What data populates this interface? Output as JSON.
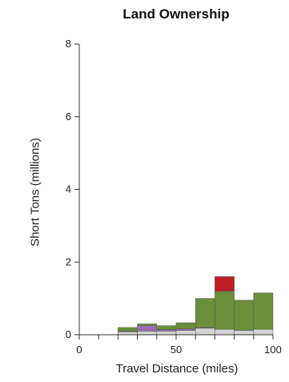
{
  "chart_data": {
    "type": "bar",
    "title": "Land Ownership",
    "xlabel": "Travel Distance (miles)",
    "ylabel": "Short Tons (millions)",
    "xlim": [
      0,
      100
    ],
    "ylim": [
      0,
      8
    ],
    "x_ticks": [
      "0",
      "50",
      "100"
    ],
    "y_ticks": [
      "0",
      "2",
      "4",
      "6",
      "8"
    ],
    "bin_width": 10,
    "stacked": true,
    "categories": [
      "20-30",
      "30-40",
      "40-50",
      "50-60",
      "60-70",
      "70-80",
      "80-90",
      "90-100"
    ],
    "bins": [
      [
        20,
        30
      ],
      [
        30,
        40
      ],
      [
        40,
        50
      ],
      [
        50,
        60
      ],
      [
        60,
        70
      ],
      [
        70,
        80
      ],
      [
        80,
        90
      ],
      [
        90,
        100
      ]
    ],
    "series": [
      {
        "color": "#d4d4d4",
        "values": [
          0.08,
          0.1,
          0.1,
          0.12,
          0.18,
          0.15,
          0.12,
          0.15
        ]
      },
      {
        "color": "#9b6fb5",
        "values": [
          0.02,
          0.15,
          0.04,
          0.04,
          0.02,
          0.0,
          0.0,
          0.0
        ]
      },
      {
        "color": "#6b8e3a",
        "values": [
          0.1,
          0.05,
          0.11,
          0.17,
          0.8,
          1.05,
          0.83,
          1.0
        ]
      },
      {
        "color": "#bb1f24",
        "values": [
          0.0,
          0.0,
          0.0,
          0.0,
          0.0,
          0.4,
          0.0,
          0.0
        ]
      }
    ],
    "grid": false,
    "legend": "none"
  }
}
